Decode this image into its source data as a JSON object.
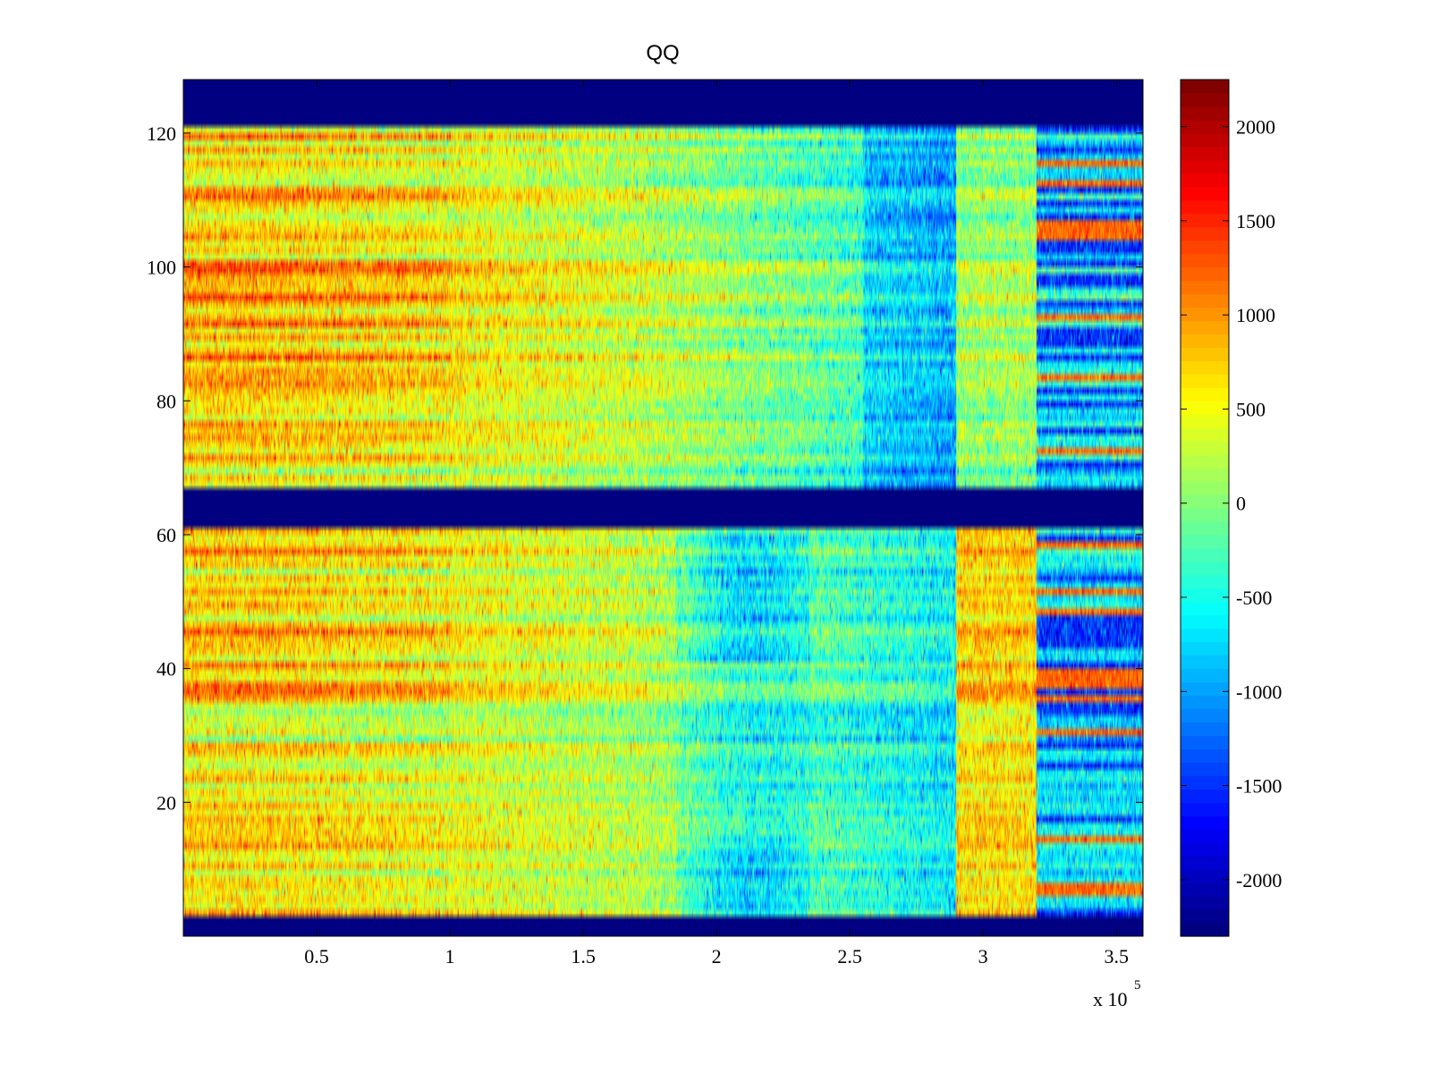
{
  "chart_data": [
    {
      "type": "heatmap",
      "title": "QQ",
      "xlabel": "",
      "ylabel": "",
      "xlim": [
        0,
        360000
      ],
      "ylim": [
        0,
        128
      ],
      "x_ticks": [
        50000,
        100000,
        150000,
        200000,
        250000,
        300000,
        350000
      ],
      "x_tick_labels": [
        "0.5",
        "1",
        "1.5",
        "2",
        "2.5",
        "3",
        "3.5"
      ],
      "x_multiplier_base": "x 10",
      "x_multiplier_exponent": "5",
      "y_ticks": [
        20,
        40,
        60,
        80,
        100,
        120
      ],
      "y_tick_labels": [
        "20",
        "40",
        "60",
        "80",
        "100",
        "120"
      ],
      "colormap": "jet",
      "grid": false,
      "empty_row_bands": [
        [
          0,
          3
        ],
        [
          61,
          67
        ],
        [
          121,
          128
        ]
      ],
      "value_summary": [
        {
          "x_range": [
            0,
            100000
          ],
          "typical_value": 600,
          "note": "warm (yellow-orange), hot rows ~1200"
        },
        {
          "x_range": [
            100000,
            180000
          ],
          "typical_value": 300
        },
        {
          "x_range": [
            180000,
            290000
          ],
          "typical_value": -400,
          "note": "cyan, local minima ~ -1500 near x=220000"
        },
        {
          "x_range": [
            290000,
            320000
          ],
          "typical_value": 200
        },
        {
          "x_range": [
            320000,
            360000
          ],
          "typical_value": -600,
          "note": "alternating rows, some ~1200, some ~ -1800"
        }
      ]
    },
    {
      "type": "colorbar",
      "clim": [
        -2300,
        2250
      ],
      "ticks": [
        2000,
        1500,
        1000,
        500,
        0,
        -500,
        -1000,
        -1500,
        -2000
      ],
      "tick_labels": [
        "2000",
        "1500",
        "1000",
        "500",
        "0",
        "-500",
        "-1000",
        "-1500",
        "-2000"
      ],
      "colormap": "jet",
      "levels": 64
    }
  ]
}
